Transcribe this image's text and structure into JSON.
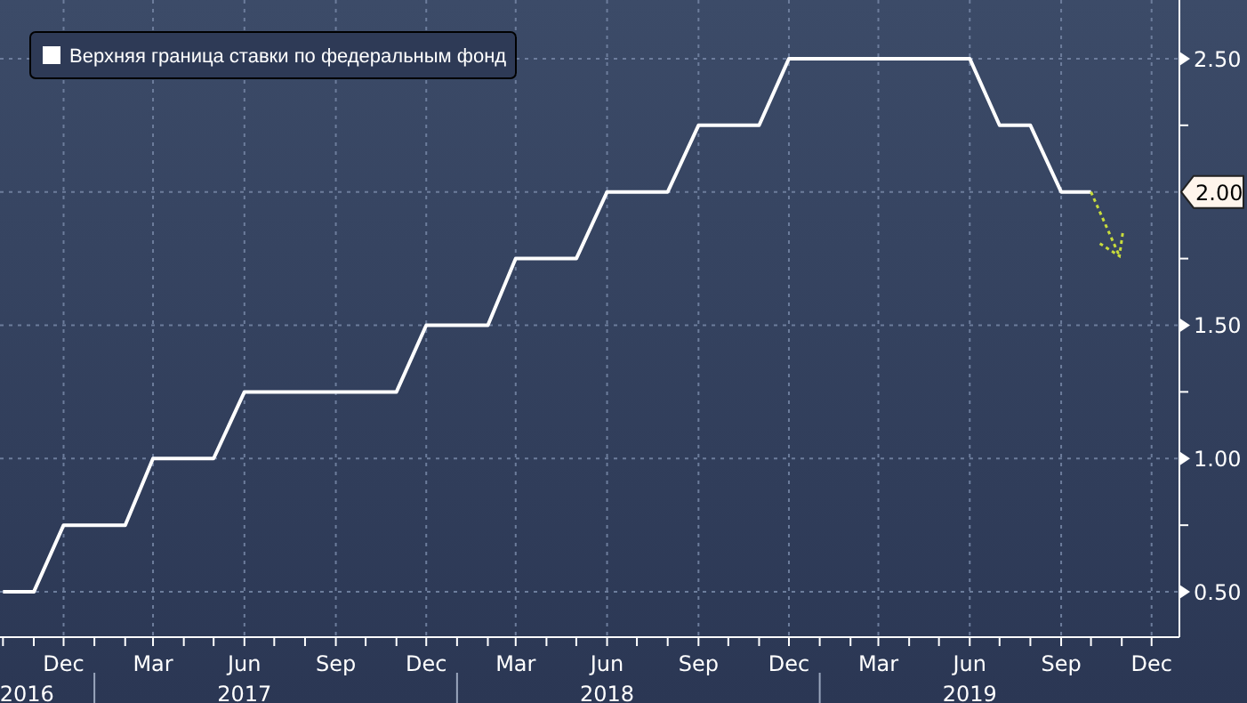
{
  "chart_data": {
    "type": "line",
    "legend": "top left",
    "grid": true,
    "marker": "none",
    "line_style": "solid",
    "x": [
      "2016-10-01",
      "2016-11-01",
      "2016-12-01",
      "2017-02-01",
      "2017-03-01",
      "2017-05-01",
      "2017-06-01",
      "2017-11-01",
      "2017-12-01",
      "2018-02-01",
      "2018-03-01",
      "2018-05-01",
      "2018-06-01",
      "2018-08-01",
      "2018-09-01",
      "2018-11-01",
      "2018-12-01",
      "2019-06-01",
      "2019-07-01",
      "2019-08-01",
      "2019-09-01",
      "2019-10-01"
    ],
    "series": [
      {
        "name": "Верхняя граница ставки по федеральным фонд",
        "color": "#ffffff",
        "values": [
          0.5,
          0.5,
          0.75,
          0.75,
          1.0,
          1.0,
          1.25,
          1.25,
          1.5,
          1.5,
          1.75,
          1.75,
          2.0,
          2.0,
          2.25,
          2.25,
          2.5,
          2.5,
          2.25,
          2.25,
          2.0,
          2.0
        ]
      }
    ],
    "xlim": [
      "2016-09-28",
      "2019-12-29"
    ],
    "x2lim": [
      "2016-09-28",
      "2019-12-29"
    ],
    "x2ticks": [
      {
        "value": "2016-10-25",
        "label": "2016"
      },
      {
        "value": "2017-06-01",
        "label": "2017"
      },
      {
        "value": "2018-06-01",
        "label": "2018"
      },
      {
        "value": "2019-06-01",
        "label": "2019"
      }
    ],
    "xticks": [
      {
        "value": "2016-12-01",
        "label": "Dec"
      },
      {
        "value": "2017-03-01",
        "label": "Mar"
      },
      {
        "value": "2017-06-01",
        "label": "Jun"
      },
      {
        "value": "2017-09-01",
        "label": "Sep"
      },
      {
        "value": "2017-12-01",
        "label": "Dec"
      },
      {
        "value": "2018-03-01",
        "label": "Mar"
      },
      {
        "value": "2018-06-01",
        "label": "Jun"
      },
      {
        "value": "2018-09-01",
        "label": "Sep"
      },
      {
        "value": "2018-12-01",
        "label": "Dec"
      },
      {
        "value": "2019-03-01",
        "label": "Mar"
      },
      {
        "value": "2019-06-01",
        "label": "Jun"
      },
      {
        "value": "2019-09-01",
        "label": "Sep"
      },
      {
        "value": "2019-12-01",
        "label": "Dec"
      }
    ],
    "ylim": [
      0.33,
      2.72
    ],
    "yticks": [
      {
        "value": 0.5,
        "label": "0.50"
      },
      {
        "value": 0.75,
        "label": null
      },
      {
        "value": 1.0,
        "label": "1.00"
      },
      {
        "value": 1.25,
        "label": null
      },
      {
        "value": 1.5,
        "label": "1.50"
      },
      {
        "value": 1.75,
        "label": null
      },
      {
        "value": 2.0,
        "label": "2.00"
      },
      {
        "value": 2.25,
        "label": null
      },
      {
        "value": 2.5,
        "label": "2.50"
      }
    ]
  }
}
